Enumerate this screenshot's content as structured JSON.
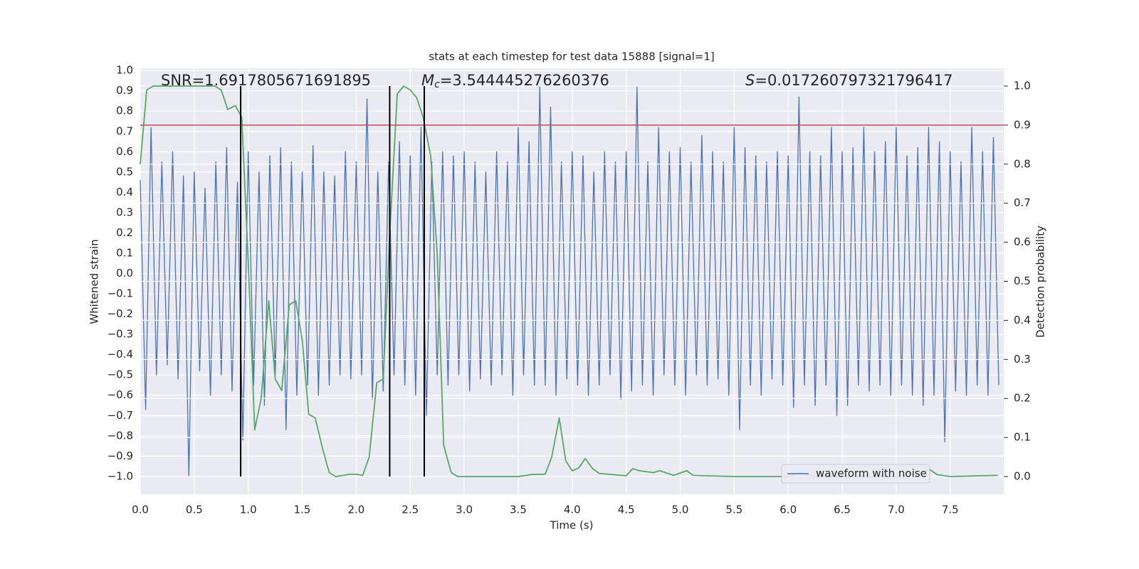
{
  "chart_data": {
    "type": "line",
    "title": "stats at each timestep for test data 15888 [signal=1]",
    "xlabel": "Time (s)",
    "ylabel": "Whitened strain",
    "y2label": "Detection probability",
    "annotations": [
      [
        "SNR=1.6917805671691895"
      ],
      [
        "M",
        "c",
        "=3.544445276260376"
      ],
      [
        "S",
        "=0.017260797321796417"
      ]
    ],
    "xlim": [
      0,
      7.996
    ],
    "ylim": [
      -1.088,
      1.011
    ],
    "y2lim": [
      -0.0455,
      1.0455
    ],
    "xticks": [
      {
        "value": 0,
        "label": "0.0"
      },
      {
        "value": 0.5,
        "label": "0.5"
      },
      {
        "value": 1,
        "label": "1.0"
      },
      {
        "value": 1.5,
        "label": "1.5"
      },
      {
        "value": 2,
        "label": "2.0"
      },
      {
        "value": 2.5,
        "label": "2.5"
      },
      {
        "value": 3,
        "label": "3.0"
      },
      {
        "value": 3.5,
        "label": "3.5"
      },
      {
        "value": 4,
        "label": "4.0"
      },
      {
        "value": 4.5,
        "label": "4.5"
      },
      {
        "value": 5,
        "label": "5.0"
      },
      {
        "value": 5.5,
        "label": "5.5"
      },
      {
        "value": 6,
        "label": "6.0"
      },
      {
        "value": 6.5,
        "label": "6.5"
      },
      {
        "value": 7,
        "label": "7.0"
      },
      {
        "value": 7.5,
        "label": "7.5"
      }
    ],
    "yticks": [
      {
        "value": -1,
        "label": "−1.0"
      },
      {
        "value": -0.9,
        "label": "−0.9"
      },
      {
        "value": -0.8,
        "label": "−0.8"
      },
      {
        "value": -0.7,
        "label": "−0.7"
      },
      {
        "value": -0.6,
        "label": "−0.6"
      },
      {
        "value": -0.5,
        "label": "−0.5"
      },
      {
        "value": -0.4,
        "label": "−0.4"
      },
      {
        "value": -0.3,
        "label": "−0.3"
      },
      {
        "value": -0.2,
        "label": "−0.2"
      },
      {
        "value": -0.1,
        "label": "−0.1"
      },
      {
        "value": 0,
        "label": "0.0"
      },
      {
        "value": 0.1,
        "label": "0.1"
      },
      {
        "value": 0.2,
        "label": "0.2"
      },
      {
        "value": 0.3,
        "label": "0.3"
      },
      {
        "value": 0.4,
        "label": "0.4"
      },
      {
        "value": 0.5,
        "label": "0.5"
      },
      {
        "value": 0.6,
        "label": "0.6"
      },
      {
        "value": 0.7,
        "label": "0.7"
      },
      {
        "value": 0.8,
        "label": "0.8"
      },
      {
        "value": 0.9,
        "label": "0.9"
      },
      {
        "value": 1,
        "label": "1.0"
      }
    ],
    "y2ticks": [
      {
        "value": 0,
        "label": "0.0"
      },
      {
        "value": 0.1,
        "label": "0.1"
      },
      {
        "value": 0.2,
        "label": "0.2"
      },
      {
        "value": 0.3,
        "label": "0.3"
      },
      {
        "value": 0.4,
        "label": "0.4"
      },
      {
        "value": 0.5,
        "label": "0.5"
      },
      {
        "value": 0.6,
        "label": "0.6"
      },
      {
        "value": 0.7,
        "label": "0.7"
      },
      {
        "value": 0.8,
        "label": "0.8"
      },
      {
        "value": 0.9,
        "label": "0.9"
      },
      {
        "value": 1,
        "label": "1.0"
      }
    ],
    "grid": true,
    "legend": "lower right",
    "threshold": 0.9,
    "threshold_color": "#c44e52",
    "vlines": [
      0.93,
      2.31,
      2.63
    ],
    "vline_color": "#000000",
    "series": [
      {
        "name": "waveform with noise",
        "color": "#4c72b0",
        "x": [
          0,
          0.05,
          0.1,
          0.15,
          0.2,
          0.25,
          0.3,
          0.35,
          0.4,
          0.45,
          0.5,
          0.55,
          0.6,
          0.65,
          0.7,
          0.75,
          0.8,
          0.85,
          0.9,
          0.95,
          1,
          1.05,
          1.1,
          1.15,
          1.2,
          1.25,
          1.3,
          1.35,
          1.4,
          1.45,
          1.5,
          1.55,
          1.6,
          1.65,
          1.7,
          1.75,
          1.8,
          1.85,
          1.9,
          1.95,
          2,
          2.05,
          2.1,
          2.15,
          2.2,
          2.25,
          2.3,
          2.35,
          2.4,
          2.45,
          2.5,
          2.55,
          2.6,
          2.65,
          2.7,
          2.75,
          2.8,
          2.85,
          2.9,
          2.95,
          3,
          3.05,
          3.1,
          3.15,
          3.2,
          3.25,
          3.3,
          3.35,
          3.4,
          3.45,
          3.5,
          3.55,
          3.6,
          3.65,
          3.7,
          3.75,
          3.8,
          3.85,
          3.9,
          3.95,
          4,
          4.05,
          4.1,
          4.15,
          4.2,
          4.25,
          4.3,
          4.35,
          4.4,
          4.45,
          4.5,
          4.55,
          4.6,
          4.65,
          4.7,
          4.75,
          4.8,
          4.85,
          4.9,
          4.95,
          5,
          5.05,
          5.1,
          5.15,
          5.2,
          5.25,
          5.3,
          5.35,
          5.4,
          5.45,
          5.5,
          5.55,
          5.6,
          5.65,
          5.7,
          5.75,
          5.8,
          5.85,
          5.9,
          5.95,
          6,
          6.05,
          6.1,
          6.15,
          6.2,
          6.25,
          6.3,
          6.35,
          6.4,
          6.45,
          6.5,
          6.55,
          6.6,
          6.65,
          6.7,
          6.75,
          6.8,
          6.85,
          6.9,
          6.95,
          7,
          7.05,
          7.1,
          7.15,
          7.2,
          7.25,
          7.3,
          7.35,
          7.4,
          7.45,
          7.5,
          7.55,
          7.6,
          7.65,
          7.7,
          7.75,
          7.8,
          7.85,
          7.9,
          7.95
        ],
        "values": [
          0.46,
          -0.67,
          0.72,
          -0.5,
          0.55,
          -0.45,
          0.6,
          -0.52,
          0.48,
          -1.0,
          0.5,
          -0.48,
          0.42,
          -0.6,
          0.55,
          -0.5,
          0.62,
          -0.58,
          0.45,
          -0.82,
          0.6,
          -0.55,
          0.5,
          -0.65,
          0.58,
          -0.5,
          0.62,
          -0.77,
          0.55,
          -0.6,
          0.5,
          -0.55,
          0.63,
          -0.6,
          0.5,
          -0.55,
          0.48,
          -0.5,
          0.6,
          -0.52,
          0.55,
          -0.5,
          0.86,
          -0.62,
          0.5,
          -0.58,
          0.55,
          -0.5,
          0.65,
          -0.55,
          0.58,
          -0.6,
          0.72,
          -0.7,
          0.55,
          -0.5,
          0.6,
          -0.55,
          0.58,
          -0.5,
          0.6,
          -0.58,
          0.55,
          -0.52,
          0.5,
          -0.55,
          0.6,
          -0.5,
          0.55,
          -0.6,
          0.72,
          -0.5,
          0.65,
          -0.55,
          0.92,
          -0.55,
          0.82,
          -0.6,
          0.55,
          -0.52,
          0.6,
          -0.55,
          0.58,
          -0.6,
          0.5,
          -0.55,
          0.6,
          -0.5,
          0.55,
          -0.62,
          0.6,
          -0.58,
          0.92,
          -0.55,
          0.55,
          -0.6,
          0.72,
          -0.5,
          0.6,
          -0.55,
          0.62,
          -0.6,
          0.55,
          -0.5,
          0.68,
          -0.55,
          0.6,
          -0.52,
          0.55,
          -0.6,
          0.72,
          -0.77,
          0.62,
          -0.55,
          0.58,
          -0.6,
          0.55,
          -0.52,
          0.6,
          -0.55,
          0.58,
          -0.66,
          0.87,
          -0.55,
          0.6,
          -0.65,
          0.58,
          -0.55,
          0.72,
          -0.7,
          0.6,
          -0.65,
          0.62,
          -0.55,
          0.72,
          -0.58,
          0.6,
          -0.55,
          0.65,
          -0.6,
          0.72,
          -0.55,
          0.58,
          -0.6,
          0.62,
          -0.65,
          0.72,
          -0.6,
          0.65,
          -0.83,
          0.6,
          -0.58,
          0.55,
          -0.6,
          0.72,
          -0.55,
          0.6,
          -0.6,
          0.67,
          -0.55
        ]
      },
      {
        "color": "#55a868",
        "axis": "y2",
        "x": [
          0,
          0.06,
          0.12,
          0.25,
          0.5,
          0.69,
          0.75,
          0.81,
          0.88,
          0.94,
          1.0,
          1.06,
          1.12,
          1.19,
          1.25,
          1.31,
          1.38,
          1.44,
          1.5,
          1.56,
          1.62,
          1.69,
          1.75,
          1.81,
          1.88,
          1.94,
          2.0,
          2.06,
          2.12,
          2.19,
          2.25,
          2.31,
          2.38,
          2.44,
          2.5,
          2.56,
          2.62,
          2.69,
          2.75,
          2.81,
          2.88,
          2.94,
          3.5,
          3.62,
          3.75,
          3.81,
          3.88,
          3.94,
          4.0,
          4.06,
          4.12,
          4.19,
          4.25,
          4.5,
          4.56,
          4.62,
          4.75,
          4.81,
          4.94,
          5.06,
          5.12,
          5.5,
          6.0,
          6.12,
          6.25,
          7.0,
          7.12,
          7.19,
          7.31,
          7.38,
          7.5,
          7.94
        ],
        "values": [
          0.8,
          0.99,
          1.0,
          1.0,
          1.0,
          1.0,
          0.99,
          0.94,
          0.95,
          0.92,
          0.55,
          0.12,
          0.2,
          0.45,
          0.25,
          0.22,
          0.44,
          0.45,
          0.35,
          0.16,
          0.15,
          0.07,
          0.01,
          0.0,
          0.003,
          0.006,
          0.006,
          0.003,
          0.05,
          0.24,
          0.25,
          0.62,
          0.98,
          1.0,
          0.99,
          0.97,
          0.92,
          0.82,
          0.57,
          0.08,
          0.01,
          0.0,
          0.0,
          0.005,
          0.006,
          0.05,
          0.15,
          0.04,
          0.015,
          0.022,
          0.046,
          0.02,
          0.008,
          0.002,
          0.02,
          0.015,
          0.01,
          0.015,
          0.003,
          0.015,
          0.003,
          0.0,
          0.0,
          0.01,
          0.0,
          0.0,
          0.01,
          0.005,
          0.018,
          0.005,
          0.0,
          0.003
        ]
      }
    ]
  }
}
